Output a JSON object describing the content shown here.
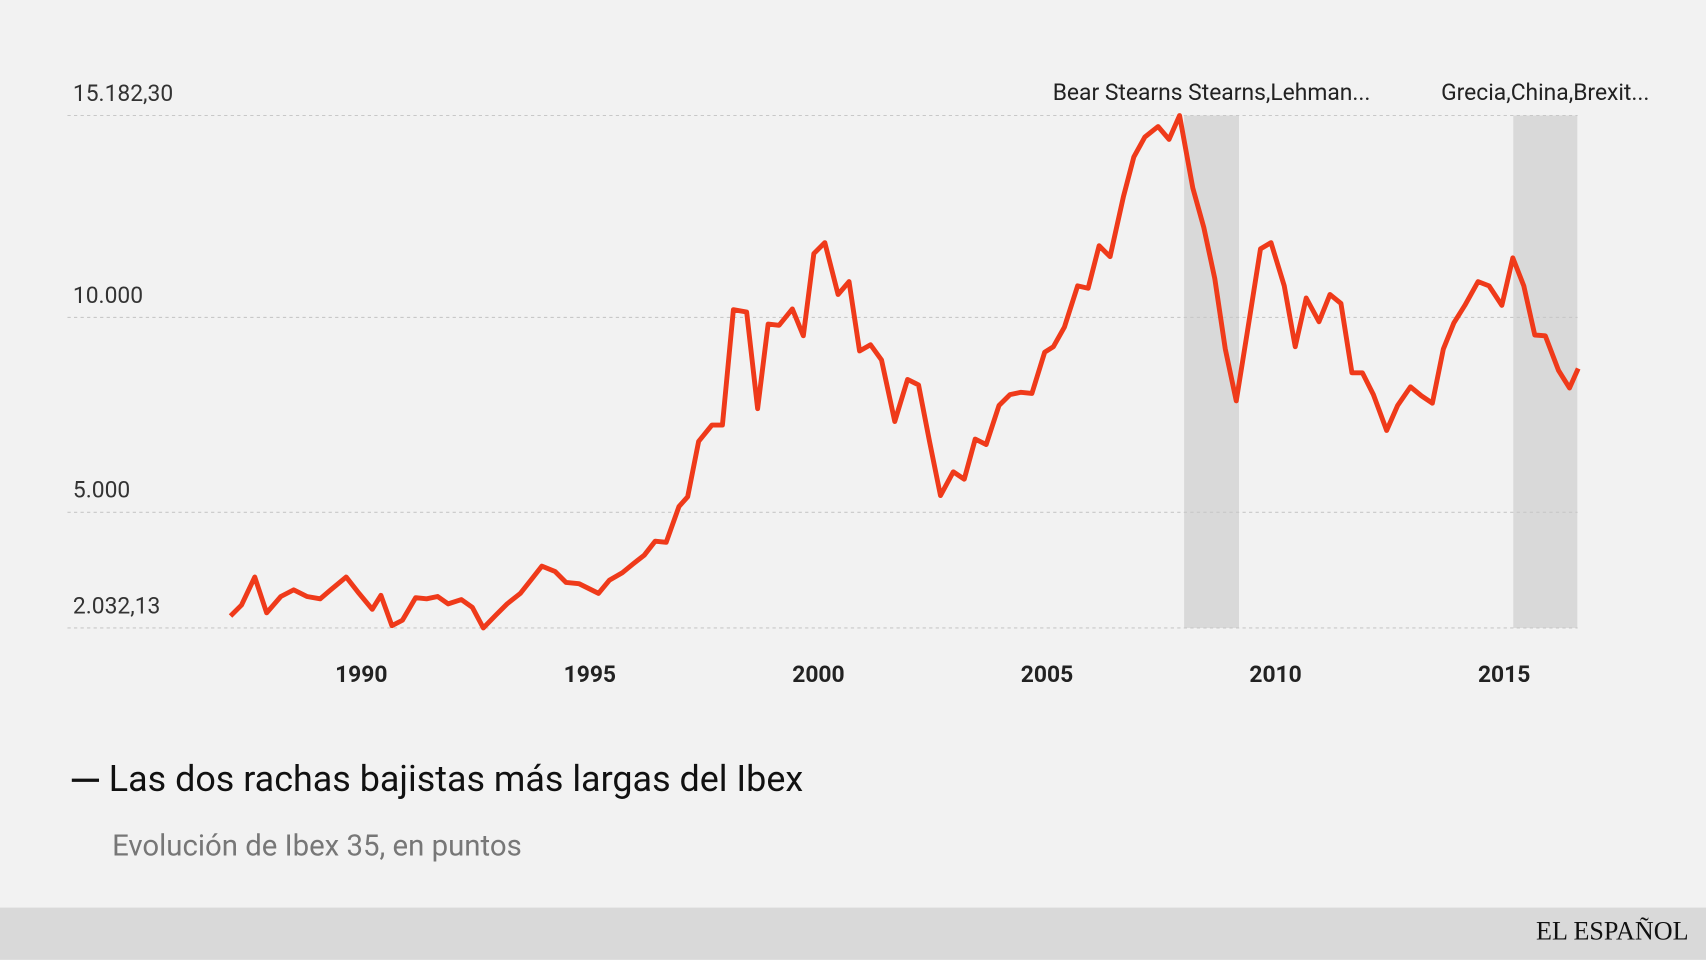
{
  "chart_data": {
    "type": "line",
    "title": "Las dos rachas bajistas más largas del Ibex",
    "subtitle": "Evolución de Ibex 35, en puntos",
    "source": "EL ESPAÑOL",
    "color": "#ef3a1a",
    "xlim": [
      1987,
      2016.75
    ],
    "xticks": [
      1990,
      1995,
      2000,
      2005,
      2010,
      2015
    ],
    "ylim": [
      2032.13,
      15182.3
    ],
    "yticks": [
      {
        "value": 2032.13,
        "label": "2.032,13"
      },
      {
        "value": 5000,
        "label": "5.000"
      },
      {
        "value": 10000,
        "label": "10.000"
      },
      {
        "value": 15182.3,
        "label": "15.182,30"
      }
    ],
    "grid": true,
    "annotations": [
      {
        "label": "Bear Stearns Stearns,Lehman...",
        "start": 2008.0,
        "end": 2009.2
      },
      {
        "label": "Grecia,China,Brexit...",
        "start": 2015.2,
        "end": 2016.6
      }
    ],
    "x": [
      1987.14,
      1987.38,
      1987.67,
      1987.93,
      1988.24,
      1988.52,
      1988.81,
      1989.1,
      1989.33,
      1989.67,
      1989.95,
      1990.24,
      1990.43,
      1990.67,
      1990.9,
      1991.19,
      1991.43,
      1991.67,
      1991.9,
      1992.19,
      1992.43,
      1992.67,
      1992.95,
      1993.19,
      1993.48,
      1993.71,
      1993.95,
      1994.24,
      1994.48,
      1994.76,
      1995.19,
      1995.43,
      1995.71,
      1995.95,
      1996.19,
      1996.43,
      1996.67,
      1996.95,
      1997.14,
      1997.38,
      1997.67,
      1997.9,
      1998.14,
      1998.43,
      1998.67,
      1998.9,
      1999.14,
      1999.43,
      1999.67,
      1999.9,
      2000.14,
      2000.43,
      2000.67,
      2000.9,
      2001.14,
      2001.38,
      2001.67,
      2001.95,
      2002.19,
      2002.43,
      2002.67,
      2002.95,
      2003.19,
      2003.43,
      2003.67,
      2003.95,
      2004.19,
      2004.43,
      2004.67,
      2004.95,
      2005.14,
      2005.38,
      2005.67,
      2005.9,
      2006.14,
      2006.38,
      2006.67,
      2006.9,
      2007.14,
      2007.43,
      2007.67,
      2007.9,
      2008.19,
      2008.43,
      2008.67,
      2008.9,
      2009.14,
      2009.38,
      2009.67,
      2009.9,
      2010.19,
      2010.43,
      2010.67,
      2010.95,
      2011.19,
      2011.43,
      2011.67,
      2011.9,
      2012.14,
      2012.43,
      2012.67,
      2012.95,
      2013.19,
      2013.43,
      2013.67,
      2013.9,
      2014.14,
      2014.43,
      2014.67,
      2014.95,
      2015.19,
      2015.43,
      2015.67,
      2015.9,
      2016.19,
      2016.43,
      2016.62
    ],
    "values": [
      2340,
      2620,
      3340,
      2420,
      2840,
      3010,
      2840,
      2780,
      3010,
      3340,
      2920,
      2510,
      2870,
      2090,
      2230,
      2810,
      2780,
      2840,
      2650,
      2760,
      2560,
      2032,
      2370,
      2650,
      2920,
      3260,
      3620,
      3480,
      3200,
      3170,
      2920,
      3260,
      3450,
      3680,
      3900,
      4260,
      4230,
      5150,
      5400,
      6820,
      7240,
      7240,
      10200,
      10140,
      7660,
      9830,
      9800,
      10220,
      9530,
      11640,
      11920,
      10590,
      10920,
      9140,
      9300,
      8910,
      7330,
      8410,
      8270,
      6820,
      5430,
      6040,
      5850,
      6880,
      6740,
      7740,
      8020,
      8080,
      8050,
      9110,
      9250,
      9750,
      10810,
      10750,
      11840,
      11560,
      13090,
      14120,
      14630,
      14900,
      14570,
      15182,
      13320,
      12310,
      11000,
      9190,
      7860,
      9610,
      11760,
      11920,
      10810,
      9250,
      10500,
      9890,
      10590,
      10360,
      8580,
      8580,
      8020,
      7100,
      7740,
      8220,
      7990,
      7800,
      9190,
      9860,
      10310,
      10920,
      10810,
      10310,
      11530,
      10810,
      9550,
      9530,
      8640,
      8190,
      8690
    ]
  }
}
